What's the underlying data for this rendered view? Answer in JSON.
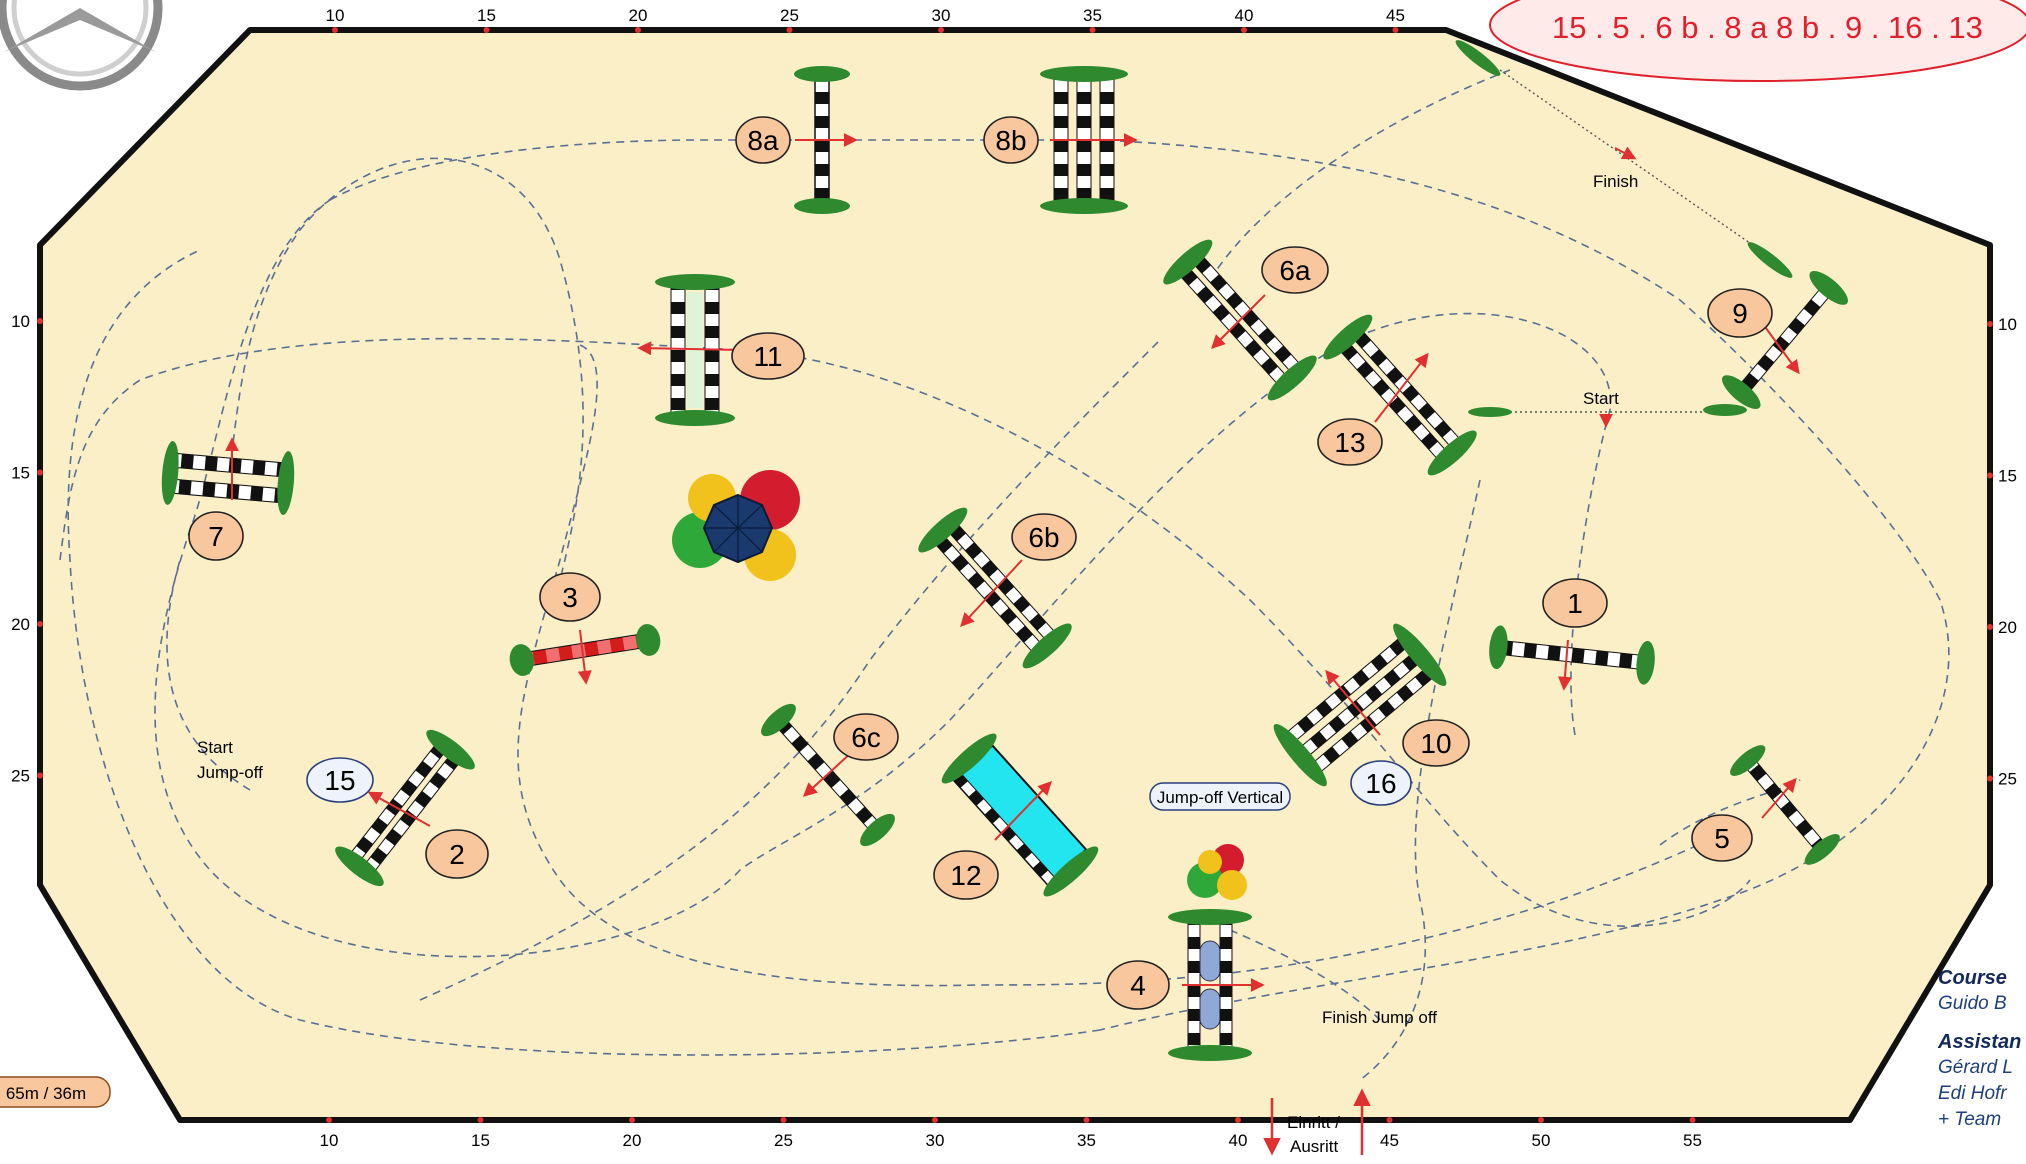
{
  "sequence_banner": "15 . 5 . 6 b . 8 a 8 b . 9 . 16 . 13",
  "scale_top": [
    "10",
    "15",
    "20",
    "25",
    "30",
    "35",
    "40",
    "45"
  ],
  "scale_bottom": [
    "10",
    "15",
    "20",
    "25",
    "30",
    "35",
    "40",
    "45",
    "50",
    "55"
  ],
  "scale_left": [
    "10",
    "15",
    "20",
    "25"
  ],
  "scale_right": [
    "10",
    "15",
    "20",
    "25"
  ],
  "obstacles": {
    "o1": "1",
    "o2": "2",
    "o3": "3",
    "o4": "4",
    "o5": "5",
    "o6a": "6a",
    "o6b": "6b",
    "o6c": "6c",
    "o7": "7",
    "o8a": "8a",
    "o8b": "8b",
    "o9": "9",
    "o10": "10",
    "o11": "11",
    "o12": "12",
    "o13": "13"
  },
  "jumpoff_obstacles": {
    "o15": "15",
    "o16": "16"
  },
  "labels": {
    "finish": "Finish",
    "start": "Start",
    "start_jumpoff_1": "Start",
    "start_jumpoff_2": "Jump-off",
    "jumpoff_vertical": "Jump-off Vertical",
    "finish_jumpoff": "Finish Jump off",
    "entry_1": "Einritt /",
    "entry_2": "Ausritt",
    "arena_size": "65m / 36m"
  },
  "credits": {
    "designer_head": "Course",
    "designer": "Guido B",
    "assistants_head": "Assistan",
    "assistant_1": "Gérard L",
    "assistant_2": "Edi Hofr",
    "assistant_3": "+ Team"
  },
  "colors": {
    "arena_fill": "#fbefc8",
    "arena_border": "#111111",
    "number_fill": "#f9c79e",
    "jumpoff_fill": "#eef3fb",
    "path_line": "#5a6f93",
    "arrow": "#e03030",
    "banner_text": "#e0202a",
    "water": "#22e5ef",
    "bush": "#2f8a2f"
  }
}
